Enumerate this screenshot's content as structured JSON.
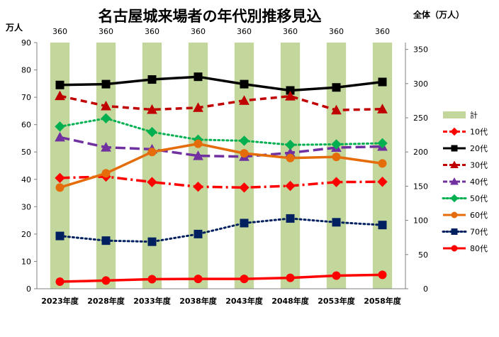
{
  "chart_data": {
    "type": "bar",
    "title": "名古屋城来場者の年代別推移見込",
    "ylabel": "万人",
    "y2label": "全体（万人）",
    "ylim": [
      0,
      90
    ],
    "yticks": [
      0,
      10,
      20,
      30,
      40,
      50,
      60,
      70,
      80,
      90
    ],
    "y2lim": [
      0,
      360
    ],
    "y2ticks": [
      0,
      50,
      100,
      150,
      200,
      250,
      300,
      350
    ],
    "categories": [
      "2023年度",
      "2028年度",
      "2033年度",
      "2038年度",
      "2043年度",
      "2048年度",
      "2053年度",
      "2058年度"
    ],
    "bar_series": {
      "name": "計",
      "axis": "secondary",
      "color": "#c3d69b",
      "values": [
        360,
        360,
        360,
        360,
        360,
        360,
        360,
        360
      ],
      "labels": [
        "360",
        "360",
        "360",
        "360",
        "360",
        "360",
        "360",
        "360"
      ]
    },
    "series": [
      {
        "name": "10代",
        "color": "#ff0000",
        "dash": "dashdot",
        "marker": "diamond",
        "values": [
          40.5,
          41,
          39,
          37.3,
          37,
          37.6,
          39,
          39.1
        ]
      },
      {
        "name": "20代",
        "color": "#000000",
        "dash": "solid",
        "marker": "square",
        "values": [
          74.5,
          74.8,
          76.5,
          77.5,
          74.8,
          72.5,
          73.6,
          75.6
        ]
      },
      {
        "name": "30代",
        "color": "#c00000",
        "dash": "dash",
        "marker": "triangle",
        "values": [
          70.5,
          66.8,
          65.5,
          66.2,
          68.8,
          70.4,
          65.3,
          65.7
        ]
      },
      {
        "name": "40代",
        "color": "#7030a0",
        "dash": "longdash",
        "marker": "triangle",
        "values": [
          55.4,
          51.7,
          51,
          48.6,
          48.3,
          49.7,
          51.6,
          52
        ]
      },
      {
        "name": "50代",
        "color": "#00b050",
        "dash": "dot",
        "marker": "diamond",
        "values": [
          59.3,
          62.3,
          57.3,
          54.5,
          54.1,
          52.6,
          52.8,
          53.2
        ]
      },
      {
        "name": "60代",
        "color": "#e46c0a",
        "dash": "solid",
        "marker": "circle",
        "values": [
          37,
          42.2,
          50,
          53,
          49.5,
          47.8,
          48.2,
          45.8
        ]
      },
      {
        "name": "70代",
        "color": "#002060",
        "dash": "dot",
        "marker": "square",
        "values": [
          19.3,
          17.6,
          17.2,
          20,
          24,
          25.7,
          24.3,
          23.3
        ]
      },
      {
        "name": "80代",
        "color": "#ff0000",
        "dash": "solid",
        "marker": "circle",
        "values": [
          2.6,
          3,
          3.5,
          3.6,
          3.6,
          4,
          4.8,
          5.1
        ]
      }
    ],
    "grid": false,
    "legend_position": "right"
  }
}
